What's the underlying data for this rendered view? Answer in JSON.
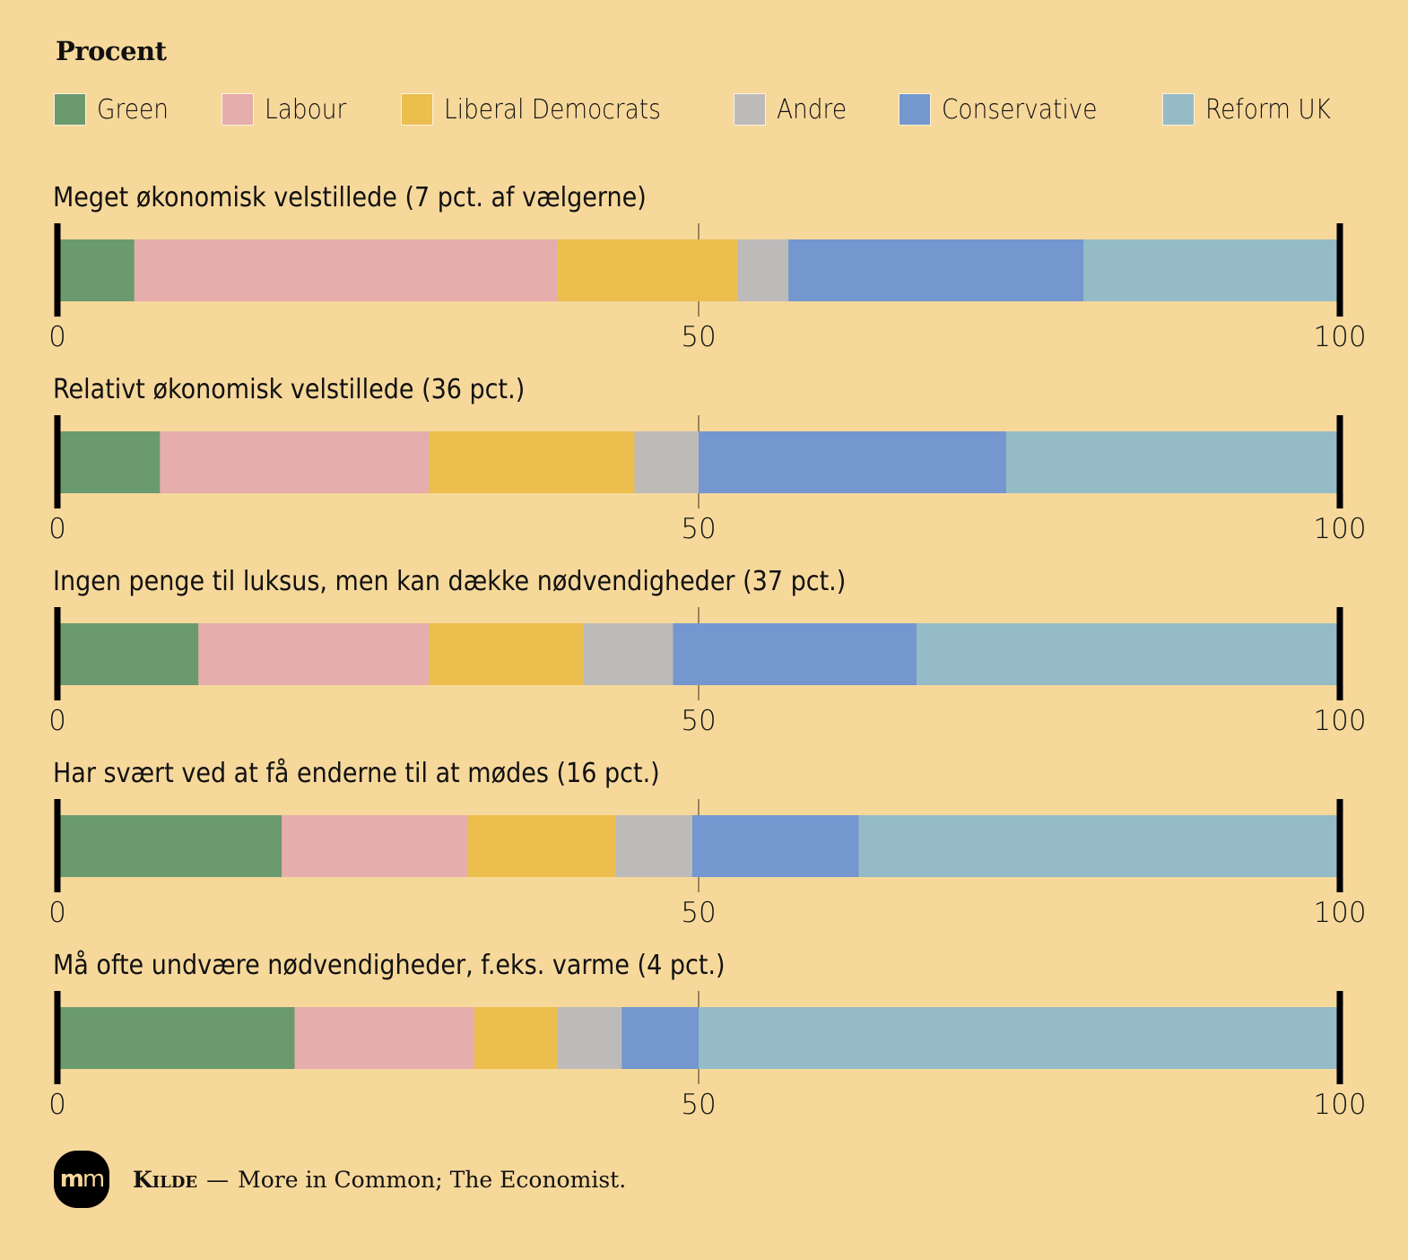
{
  "chart_data": {
    "type": "bar",
    "orientation": "horizontal",
    "stacked": true,
    "unit_label": "Procent",
    "xlim": [
      0,
      100
    ],
    "x_ticks": [
      "0",
      "50",
      "100"
    ],
    "legend_placement": "top",
    "series": [
      {
        "name": "Green",
        "color": "#6a9a6e"
      },
      {
        "name": "Labour",
        "color": "#e5adac"
      },
      {
        "name": "Liberal Democrats",
        "color": "#ecbe4d"
      },
      {
        "name": "Andre",
        "color": "#bdbbba"
      },
      {
        "name": "Conservative",
        "color": "#7397ce"
      },
      {
        "name": "Reform UK",
        "color": "#95bbc6"
      }
    ],
    "categories": [
      {
        "label": "Meget økonomisk velstillede (7 pct. af vælgerne)",
        "values": [
          6,
          33,
          14,
          4,
          23,
          20
        ]
      },
      {
        "label": "Relativt økonomisk velstillede (36 pct.)",
        "values": [
          8,
          21,
          16,
          5,
          24,
          26
        ]
      },
      {
        "label": "Ingen penge til luksus, men kan dække nødvendigheder (37 pct.)",
        "values": [
          11,
          18,
          12,
          7,
          19,
          33
        ]
      },
      {
        "label": "Har svært ved at få enderne til at mødes (16 pct.)",
        "values": [
          17.5,
          14.5,
          11.5,
          6,
          13,
          37.5
        ]
      },
      {
        "label": "Må ofte undvære nødvendigheder, f.eks. varme (4 pct.)",
        "values": [
          18.5,
          14,
          6.5,
          5,
          6,
          50
        ]
      }
    ]
  },
  "footer": {
    "logo_text_bold": "m",
    "logo_text_light": "m",
    "source_label": "Kilde",
    "dash": "—",
    "source_text": "More in Common; The Economist."
  }
}
